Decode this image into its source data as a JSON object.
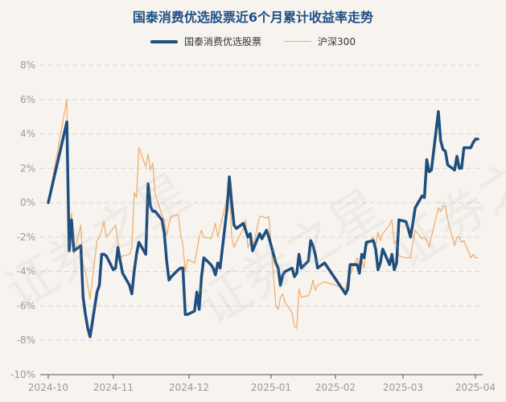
{
  "chart_data": {
    "type": "line",
    "title": "国泰消费优选股票近6个月累计收益率走势",
    "x_ticks": [
      "2024-10",
      "2024-11",
      "2024-12",
      "2025-01",
      "2025-02",
      "2025-03",
      "2025-04"
    ],
    "x_range": [
      "2024-09-30",
      "2025-04-03"
    ],
    "y_ticks": [
      "8%",
      "6%",
      "4%",
      "2%",
      "0%",
      "-2%",
      "-4%",
      "-6%",
      "-8%",
      "-10%"
    ],
    "ylim": [
      -10,
      8
    ],
    "grid": true,
    "legend_position": "top",
    "series": [
      {
        "name": "国泰消费优选股票",
        "color": "#1f4e7f",
        "points": [
          [
            "2024-09-30",
            0.0
          ],
          [
            "2024-10-08",
            4.7
          ],
          [
            "2024-10-09",
            -2.8
          ],
          [
            "2024-10-10",
            -1.0
          ],
          [
            "2024-10-11",
            -2.8
          ],
          [
            "2024-10-14",
            -2.5
          ],
          [
            "2024-10-15",
            -5.5
          ],
          [
            "2024-10-16",
            -6.5
          ],
          [
            "2024-10-17",
            -7.3
          ],
          [
            "2024-10-18",
            -7.8
          ],
          [
            "2024-10-21",
            -5.2
          ],
          [
            "2024-10-22",
            -4.8
          ],
          [
            "2024-10-23",
            -3.0
          ],
          [
            "2024-10-24",
            -3.0
          ],
          [
            "2024-10-25",
            -3.1
          ],
          [
            "2024-10-28",
            -3.9
          ],
          [
            "2024-10-29",
            -3.8
          ],
          [
            "2024-10-30",
            -2.6
          ],
          [
            "2024-10-31",
            -3.4
          ],
          [
            "2024-11-01",
            -4.1
          ],
          [
            "2024-11-04",
            -4.8
          ],
          [
            "2024-11-05",
            -5.3
          ],
          [
            "2024-11-06",
            -4.0
          ],
          [
            "2024-11-07",
            -3.0
          ],
          [
            "2024-11-08",
            -2.3
          ],
          [
            "2024-11-11",
            -3.0
          ],
          [
            "2024-11-12",
            1.1
          ],
          [
            "2024-11-13",
            -0.2
          ],
          [
            "2024-11-14",
            -0.5
          ],
          [
            "2024-11-15",
            -0.5
          ],
          [
            "2024-11-18",
            -1.0
          ],
          [
            "2024-11-19",
            -1.8
          ],
          [
            "2024-11-20",
            -3.4
          ],
          [
            "2024-11-21",
            -4.5
          ],
          [
            "2024-11-22",
            -4.3
          ],
          [
            "2024-11-25",
            -3.9
          ],
          [
            "2024-11-26",
            -3.8
          ],
          [
            "2024-11-27",
            -3.8
          ],
          [
            "2024-11-28",
            -6.5
          ],
          [
            "2024-11-29",
            -6.5
          ],
          [
            "2024-12-02",
            -6.3
          ],
          [
            "2024-12-03",
            -5.2
          ],
          [
            "2024-12-04",
            -6.2
          ],
          [
            "2024-12-05",
            -4.3
          ],
          [
            "2024-12-06",
            -3.2
          ],
          [
            "2024-12-09",
            -3.6
          ],
          [
            "2024-12-10",
            -3.8
          ],
          [
            "2024-12-11",
            -4.2
          ],
          [
            "2024-12-12",
            -3.5
          ],
          [
            "2024-12-13",
            -3.8
          ],
          [
            "2024-12-16",
            -0.3
          ],
          [
            "2024-12-17",
            1.5
          ],
          [
            "2024-12-18",
            0.0
          ],
          [
            "2024-12-19",
            -1.3
          ],
          [
            "2024-12-20",
            -1.5
          ],
          [
            "2024-12-23",
            -1.2
          ],
          [
            "2024-12-24",
            -1.6
          ],
          [
            "2024-12-25",
            -2.0
          ],
          [
            "2024-12-26",
            -1.8
          ],
          [
            "2024-12-27",
            -2.8
          ],
          [
            "2024-12-30",
            -1.8
          ],
          [
            "2024-12-31",
            -2.1
          ],
          [
            "2025-01-02",
            -1.6
          ],
          [
            "2025-01-03",
            -2.0
          ],
          [
            "2025-01-06",
            -3.5
          ],
          [
            "2025-01-07",
            -3.8
          ],
          [
            "2025-01-08",
            -4.8
          ],
          [
            "2025-01-09",
            -4.2
          ],
          [
            "2025-01-10",
            -4.0
          ],
          [
            "2025-01-13",
            -3.8
          ],
          [
            "2025-01-14",
            -4.3
          ],
          [
            "2025-01-15",
            -4.1
          ],
          [
            "2025-01-16",
            -3.0
          ],
          [
            "2025-01-17",
            -3.8
          ],
          [
            "2025-01-20",
            -3.4
          ],
          [
            "2025-01-21",
            -2.2
          ],
          [
            "2025-01-22",
            -2.5
          ],
          [
            "2025-01-23",
            -3.0
          ],
          [
            "2025-01-24",
            -3.8
          ],
          [
            "2025-01-27",
            -3.5
          ],
          [
            "2025-02-05",
            -5.3
          ],
          [
            "2025-02-06",
            -5.0
          ],
          [
            "2025-02-07",
            -3.6
          ],
          [
            "2025-02-10",
            -3.6
          ],
          [
            "2025-02-11",
            -4.1
          ],
          [
            "2025-02-12",
            -3.0
          ],
          [
            "2025-02-13",
            -3.2
          ],
          [
            "2025-02-14",
            -2.3
          ],
          [
            "2025-02-17",
            -2.2
          ],
          [
            "2025-02-18",
            -2.7
          ],
          [
            "2025-02-19",
            -3.9
          ],
          [
            "2025-02-20",
            -3.5
          ],
          [
            "2025-02-21",
            -2.7
          ],
          [
            "2025-02-24",
            -3.6
          ],
          [
            "2025-02-25",
            -3.0
          ],
          [
            "2025-02-26",
            -3.9
          ],
          [
            "2025-02-27",
            -3.5
          ],
          [
            "2025-02-28",
            -1.0
          ],
          [
            "2025-03-03",
            -1.1
          ],
          [
            "2025-03-04",
            -1.5
          ],
          [
            "2025-03-05",
            -2.0
          ],
          [
            "2025-03-06",
            -1.2
          ],
          [
            "2025-03-07",
            -0.3
          ],
          [
            "2025-03-10",
            0.4
          ],
          [
            "2025-03-11",
            0.3
          ],
          [
            "2025-03-12",
            2.5
          ],
          [
            "2025-03-13",
            1.8
          ],
          [
            "2025-03-14",
            1.9
          ],
          [
            "2025-03-17",
            5.3
          ],
          [
            "2025-03-18",
            3.6
          ],
          [
            "2025-03-19",
            3.1
          ],
          [
            "2025-03-20",
            3.0
          ],
          [
            "2025-03-21",
            2.2
          ],
          [
            "2025-03-24",
            1.9
          ],
          [
            "2025-03-25",
            2.7
          ],
          [
            "2025-03-26",
            2.0
          ],
          [
            "2025-03-27",
            2.0
          ],
          [
            "2025-03-28",
            3.2
          ],
          [
            "2025-03-31",
            3.2
          ],
          [
            "2025-04-01",
            3.5
          ],
          [
            "2025-04-02",
            3.7
          ],
          [
            "2025-04-03",
            3.7
          ]
        ]
      },
      {
        "name": "沪深300",
        "color": "#f0b070",
        "points": [
          [
            "2024-09-30",
            0.0
          ],
          [
            "2024-10-08",
            6.0
          ],
          [
            "2024-10-09",
            -1.6
          ],
          [
            "2024-10-10",
            -0.6
          ],
          [
            "2024-10-11",
            -3.0
          ],
          [
            "2024-10-14",
            -1.3
          ],
          [
            "2024-10-15",
            -3.6
          ],
          [
            "2024-10-16",
            -4.0
          ],
          [
            "2024-10-17",
            -4.8
          ],
          [
            "2024-10-18",
            -5.6
          ],
          [
            "2024-10-21",
            -2.2
          ],
          [
            "2024-10-22",
            -2.0
          ],
          [
            "2024-10-23",
            -1.6
          ],
          [
            "2024-10-24",
            -1.1
          ],
          [
            "2024-10-25",
            -2.0
          ],
          [
            "2024-10-28",
            -1.5
          ],
          [
            "2024-10-29",
            -1.3
          ],
          [
            "2024-10-30",
            -2.3
          ],
          [
            "2024-10-31",
            -3.2
          ],
          [
            "2024-11-01",
            -3.1
          ],
          [
            "2024-11-04",
            -3.0
          ],
          [
            "2024-11-05",
            -2.6
          ],
          [
            "2024-11-06",
            0.6
          ],
          [
            "2024-11-07",
            0.3
          ],
          [
            "2024-11-08",
            3.2
          ],
          [
            "2024-11-11",
            2.1
          ],
          [
            "2024-11-12",
            2.8
          ],
          [
            "2024-11-13",
            1.9
          ],
          [
            "2024-11-14",
            2.3
          ],
          [
            "2024-11-15",
            0.5
          ],
          [
            "2024-11-18",
            -0.7
          ],
          [
            "2024-11-19",
            -1.0
          ],
          [
            "2024-11-20",
            -1.9
          ],
          [
            "2024-11-21",
            -1.2
          ],
          [
            "2024-11-22",
            -0.8
          ],
          [
            "2024-11-25",
            -0.7
          ],
          [
            "2024-11-26",
            -1.8
          ],
          [
            "2024-11-27",
            -2.5
          ],
          [
            "2024-11-28",
            -4.0
          ],
          [
            "2024-11-29",
            -3.3
          ],
          [
            "2024-12-02",
            -3.5
          ],
          [
            "2024-12-03",
            -2.8
          ],
          [
            "2024-12-04",
            -2.0
          ],
          [
            "2024-12-05",
            -1.6
          ],
          [
            "2024-12-06",
            -2.0
          ],
          [
            "2024-12-09",
            -2.1
          ],
          [
            "2024-12-10",
            -1.7
          ],
          [
            "2024-12-11",
            -1.2
          ],
          [
            "2024-12-12",
            -2.0
          ],
          [
            "2024-12-13",
            -1.4
          ],
          [
            "2024-12-16",
            0.3
          ],
          [
            "2024-12-17",
            1.0
          ],
          [
            "2024-12-18",
            -2.0
          ],
          [
            "2024-12-19",
            -2.6
          ],
          [
            "2024-12-20",
            -2.3
          ],
          [
            "2024-12-23",
            -1.5
          ],
          [
            "2024-12-24",
            -1.0
          ],
          [
            "2024-12-25",
            -2.6
          ],
          [
            "2024-12-26",
            -2.3
          ],
          [
            "2024-12-27",
            -2.7
          ],
          [
            "2024-12-30",
            -0.8
          ],
          [
            "2024-12-31",
            -0.8
          ],
          [
            "2025-01-02",
            -0.9
          ],
          [
            "2025-01-03",
            -0.8
          ],
          [
            "2025-01-06",
            -6.0
          ],
          [
            "2025-01-07",
            -6.2
          ],
          [
            "2025-01-08",
            -5.5
          ],
          [
            "2025-01-09",
            -5.3
          ],
          [
            "2025-01-10",
            -5.8
          ],
          [
            "2025-01-13",
            -6.4
          ],
          [
            "2025-01-14",
            -7.2
          ],
          [
            "2025-01-15",
            -7.3
          ],
          [
            "2025-01-16",
            -5.0
          ],
          [
            "2025-01-17",
            -5.5
          ],
          [
            "2025-01-20",
            -5.4
          ],
          [
            "2025-01-21",
            -5.1
          ],
          [
            "2025-01-22",
            -4.5
          ],
          [
            "2025-01-23",
            -5.1
          ],
          [
            "2025-01-24",
            -4.8
          ],
          [
            "2025-01-27",
            -4.6
          ],
          [
            "2025-02-05",
            -5.0
          ],
          [
            "2025-02-06",
            -4.5
          ],
          [
            "2025-02-07",
            -4.2
          ],
          [
            "2025-02-10",
            -3.2
          ],
          [
            "2025-02-11",
            -3.6
          ],
          [
            "2025-02-12",
            -3.3
          ],
          [
            "2025-02-13",
            -3.8
          ],
          [
            "2025-02-14",
            -2.5
          ],
          [
            "2025-02-17",
            -2.0
          ],
          [
            "2025-02-18",
            -2.5
          ],
          [
            "2025-02-19",
            -1.7
          ],
          [
            "2025-02-20",
            -2.2
          ],
          [
            "2025-02-21",
            -1.8
          ],
          [
            "2025-02-24",
            -1.3
          ],
          [
            "2025-02-25",
            -1.0
          ],
          [
            "2025-02-26",
            -2.4
          ],
          [
            "2025-02-27",
            -2.2
          ],
          [
            "2025-02-28",
            -3.1
          ],
          [
            "2025-03-03",
            -3.2
          ],
          [
            "2025-03-04",
            -3.2
          ],
          [
            "2025-03-05",
            -3.2
          ],
          [
            "2025-03-06",
            -2.3
          ],
          [
            "2025-03-07",
            -1.6
          ],
          [
            "2025-03-10",
            -2.1
          ],
          [
            "2025-03-11",
            -2.0
          ],
          [
            "2025-03-12",
            -2.2
          ],
          [
            "2025-03-13",
            -2.6
          ],
          [
            "2025-03-14",
            -2.0
          ],
          [
            "2025-03-17",
            -0.3
          ],
          [
            "2025-03-18",
            -0.5
          ],
          [
            "2025-03-19",
            -0.2
          ],
          [
            "2025-03-20",
            -0.2
          ],
          [
            "2025-03-21",
            -1.0
          ],
          [
            "2025-03-24",
            -2.5
          ],
          [
            "2025-03-25",
            -2.0
          ],
          [
            "2025-03-26",
            -2.0
          ],
          [
            "2025-03-27",
            -2.3
          ],
          [
            "2025-03-28",
            -2.2
          ],
          [
            "2025-03-31",
            -3.2
          ],
          [
            "2025-04-01",
            -3.0
          ],
          [
            "2025-04-02",
            -3.2
          ],
          [
            "2025-04-03",
            -3.2
          ]
        ]
      }
    ]
  },
  "watermark": "证券之星"
}
